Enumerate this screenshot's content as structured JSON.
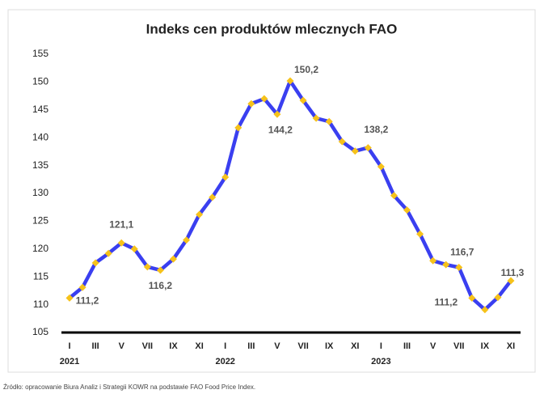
{
  "chart_data": {
    "type": "line",
    "title": "Indeks cen produktów mlecznych FAO",
    "source": "Źródło: opracowanie Biura Analiz i Strategii KOWR na podstawie FAO Food Price Index.",
    "categories": [
      "I",
      null,
      "III",
      null,
      "V",
      null,
      "VII",
      null,
      "IX",
      null,
      "XI",
      null,
      "I",
      null,
      "III",
      null,
      "V",
      null,
      "VII",
      null,
      "IX",
      null,
      "XI",
      null,
      "I",
      null,
      "III",
      null,
      "V",
      null,
      "VII",
      null,
      "IX",
      null,
      "XI"
    ],
    "years": [
      "2021",
      "2022",
      "2023"
    ],
    "series": [
      {
        "name": "Indeks cen produktów mlecznych FAO",
        "color": "#3a3ff0",
        "marker_color": "#f6c21a",
        "values": [
          111.2,
          113.1,
          117.5,
          119.2,
          121.1,
          120.0,
          116.8,
          116.2,
          118.2,
          121.6,
          126.2,
          129.3,
          132.9,
          141.8,
          146.1,
          147.0,
          144.2,
          150.2,
          146.7,
          143.5,
          142.9,
          139.3,
          137.6,
          138.2,
          134.8,
          129.6,
          127.0,
          122.7,
          117.9,
          117.2,
          116.7,
          111.2,
          109.1,
          111.3,
          114.3
        ],
        "value_labels": [
          "111,2",
          null,
          null,
          null,
          "121,1",
          null,
          null,
          "116,2",
          null,
          null,
          null,
          null,
          null,
          null,
          null,
          null,
          "144,2",
          "150,2",
          null,
          null,
          null,
          null,
          null,
          "138,2",
          null,
          null,
          null,
          null,
          null,
          null,
          "116,7",
          "111,2",
          null,
          "111,3",
          null
        ]
      }
    ],
    "ylim": [
      105,
      155
    ],
    "yticks": [
      105,
      110,
      115,
      120,
      125,
      130,
      135,
      140,
      145,
      150,
      155
    ]
  }
}
